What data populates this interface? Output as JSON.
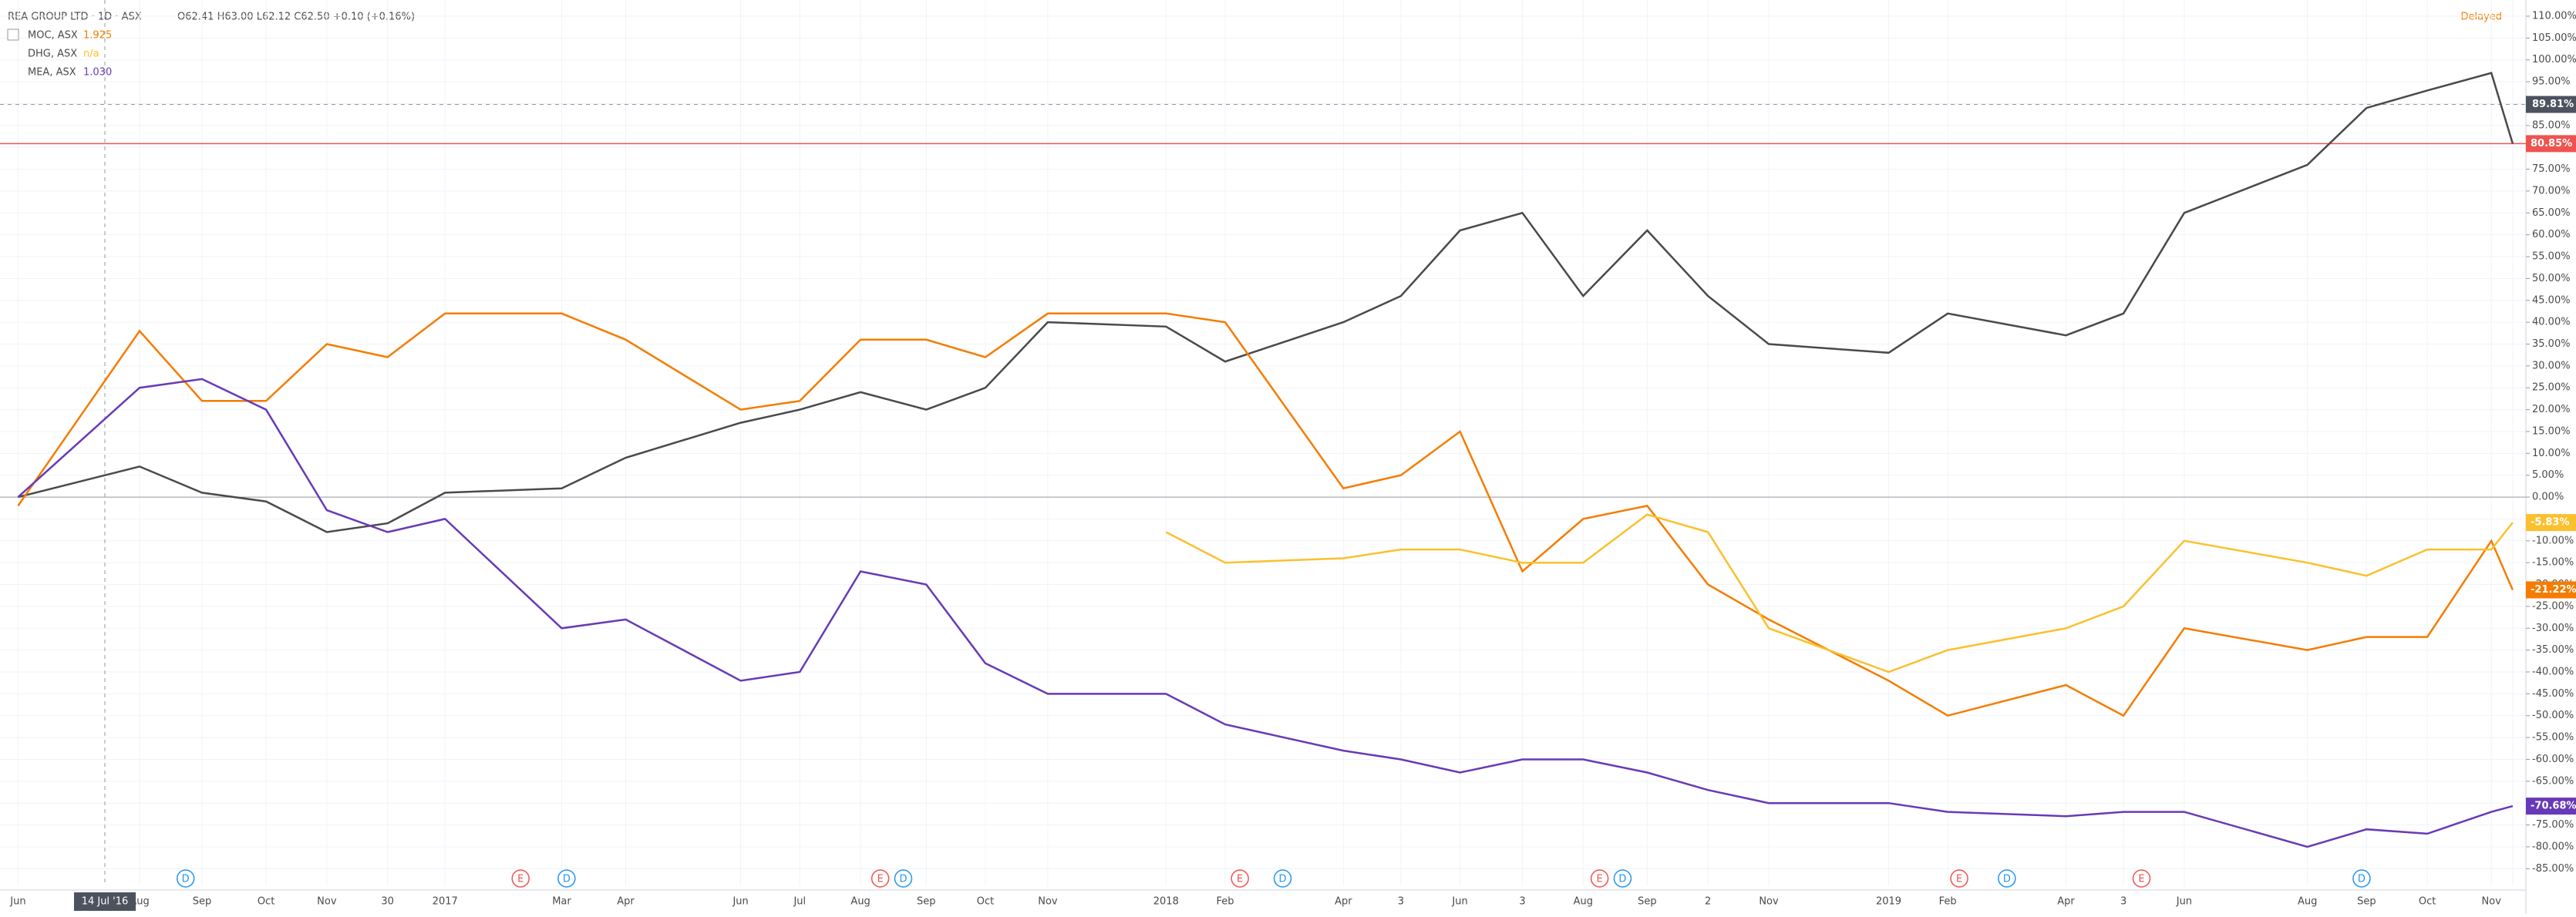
{
  "header": {
    "title": "REA GROUP LTD · 1D · ASX",
    "ohlc": "O62.41 H63.00 L62.12 C62.50 +0.10 (+0.16%)",
    "status": "Delayed"
  },
  "chart_data": {
    "type": "line",
    "categories": [
      "Jun",
      "Aug",
      "Sep",
      "Oct",
      "Nov",
      "30",
      "2017",
      "Mar",
      "Apr",
      "Jun",
      "Jul",
      "Aug",
      "Sep",
      "Oct",
      "Nov",
      "2018",
      "Feb",
      "Apr",
      "3",
      "Jun",
      "3",
      "Aug",
      "Sep",
      "2",
      "Nov",
      "2019",
      "Feb",
      "Apr",
      "3",
      "Jun",
      "Aug",
      "Sep",
      "Oct",
      "Nov",
      null
    ],
    "series": [
      {
        "name": "REA GROUP LTD",
        "color": "#4a4a4a",
        "last_label": "80.85%",
        "values": [
          0,
          7,
          1,
          -1,
          -8,
          -6,
          1,
          2,
          9,
          17,
          20,
          24,
          20,
          25,
          40,
          39,
          31,
          40,
          46,
          61,
          65,
          46,
          61,
          46,
          35,
          33,
          42,
          37,
          42,
          65,
          76,
          89,
          93,
          97,
          80.85
        ]
      },
      {
        "name": "MOC, ASX",
        "legend_value": "1.925",
        "color": "#f57c00",
        "last_label": "-21.22%",
        "values": [
          -2,
          38,
          22,
          22,
          35,
          32,
          42,
          42,
          36,
          20,
          22,
          36,
          36,
          32,
          42,
          42,
          40,
          2,
          5,
          15,
          -17,
          -5,
          -2,
          -20,
          -28,
          -42,
          -50,
          -43,
          -50,
          -30,
          -35,
          -32,
          -32,
          -10,
          -21.22
        ]
      },
      {
        "name": "DHG, ASX",
        "legend_value": "n/a",
        "color": "#fbc02d",
        "last_label": "-5.83%",
        "values": [
          null,
          null,
          null,
          null,
          null,
          null,
          null,
          null,
          null,
          null,
          null,
          null,
          null,
          null,
          null,
          -8,
          -15,
          -14,
          -12,
          -12,
          -15,
          -15,
          -4,
          -8,
          -30,
          -40,
          -35,
          -30,
          -25,
          -10,
          -15,
          -18,
          -12,
          -12,
          -5.83
        ]
      },
      {
        "name": "MEA, ASX",
        "legend_value": "1.030",
        "color": "#673ab7",
        "last_label": "-70.68%",
        "values": [
          0,
          25,
          27,
          20,
          -3,
          -8,
          -5,
          -30,
          -28,
          -42,
          -40,
          -17,
          -20,
          -38,
          -45,
          -45,
          -52,
          -58,
          -60,
          -63,
          -60,
          -60,
          -63,
          -67,
          -70,
          -70,
          -72,
          -73,
          -72,
          -72,
          -80,
          -76,
          -77,
          -72,
          -70.68
        ]
      }
    ],
    "ylim": [
      -89,
      113.7
    ],
    "yticks": [
      {
        "value": 110,
        "label": "110.00%"
      },
      {
        "value": 105,
        "label": "105.00%"
      },
      {
        "value": 100,
        "label": "100.00%"
      },
      {
        "value": 95,
        "label": "95.00%"
      },
      {
        "value": 90,
        "label": "90.00%"
      },
      {
        "value": 85,
        "label": "85.00%"
      },
      {
        "value": 80,
        "label": "80.00%"
      },
      {
        "value": 75,
        "label": "75.00%"
      },
      {
        "value": 70,
        "label": "70.00%"
      },
      {
        "value": 65,
        "label": "65.00%"
      },
      {
        "value": 60,
        "label": "60.00%"
      },
      {
        "value": 55,
        "label": "55.00%"
      },
      {
        "value": 50,
        "label": "50.00%"
      },
      {
        "value": 45,
        "label": "45.00%"
      },
      {
        "value": 40,
        "label": "40.00%"
      },
      {
        "value": 35,
        "label": "35.00%"
      },
      {
        "value": 30,
        "label": "30.00%"
      },
      {
        "value": 25,
        "label": "25.00%"
      },
      {
        "value": 20,
        "label": "20.00%"
      },
      {
        "value": 15,
        "label": "15.00%"
      },
      {
        "value": 10,
        "label": "10.00%"
      },
      {
        "value": 5,
        "label": "5.00%"
      },
      {
        "value": 0,
        "label": "0.00%"
      },
      {
        "value": -5,
        "label": "-5.00%"
      },
      {
        "value": -10,
        "label": "-10.00%"
      },
      {
        "value": -15,
        "label": "-15.00%"
      },
      {
        "value": -20,
        "label": "-20.00%"
      },
      {
        "value": -25,
        "label": "-25.00%"
      },
      {
        "value": -30,
        "label": "-30.00%"
      },
      {
        "value": -35,
        "label": "-35.00%"
      },
      {
        "value": -40,
        "label": "-40.00%"
      },
      {
        "value": -45,
        "label": "-45.00%"
      },
      {
        "value": -50,
        "label": "-50.00%"
      },
      {
        "value": -55,
        "label": "-55.00%"
      },
      {
        "value": -60,
        "label": "-60.00%"
      },
      {
        "value": -65,
        "label": "-65.00%"
      },
      {
        "value": -70,
        "label": "-70.00%"
      },
      {
        "value": -75,
        "label": "-75.00%"
      },
      {
        "value": -80,
        "label": "-80.00%"
      },
      {
        "value": -85,
        "label": "-85.00%"
      }
    ],
    "grid": true,
    "crosshair": {
      "x_label": "14 Jul '16",
      "y": 89.81,
      "y_label": "89.81%"
    },
    "events": [
      "D",
      "E",
      "D",
      "E",
      "D",
      "E",
      "D",
      "E",
      "D",
      "E",
      "D",
      "E",
      "D"
    ]
  }
}
